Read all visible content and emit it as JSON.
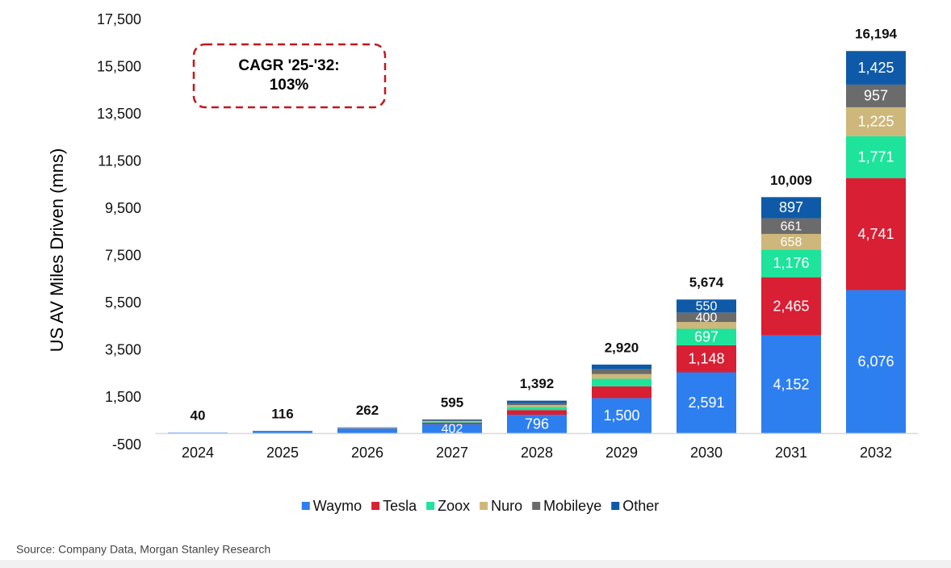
{
  "chart_data": {
    "type": "stacked_bar",
    "y_label": "US AV Miles Driven (mns)",
    "annotation": [
      "CAGR '25-'32:",
      "103%"
    ],
    "source": "Source: Company Data, Morgan Stanley Research",
    "categories": [
      "2024",
      "2025",
      "2026",
      "2027",
      "2028",
      "2029",
      "2030",
      "2031",
      "2032"
    ],
    "series": [
      {
        "name": "Waymo",
        "color": "#2d7ff0",
        "values": [
          40,
          112,
          215,
          402,
          796,
          1500,
          2591,
          4152,
          6076
        ],
        "value_labels": [
          null,
          null,
          null,
          "402",
          "796",
          "1,500",
          "2,591",
          "4,152",
          "6,076"
        ]
      },
      {
        "name": "Tesla",
        "color": "#d81f34",
        "values": [
          0,
          2,
          15,
          60,
          200,
          500,
          1148,
          2465,
          4741
        ],
        "value_labels": [
          null,
          null,
          null,
          null,
          null,
          null,
          "1,148",
          "2,465",
          "4,741"
        ]
      },
      {
        "name": "Zoox",
        "color": "#1ee39b",
        "values": [
          0,
          1,
          10,
          40,
          130,
          320,
          697,
          1176,
          1771
        ],
        "value_labels": [
          null,
          null,
          null,
          null,
          null,
          null,
          "697",
          "1,176",
          "1,771"
        ]
      },
      {
        "name": "Nuro",
        "color": "#cdb77a",
        "values": [
          0,
          0,
          5,
          25,
          80,
          200,
          288,
          658,
          1225
        ],
        "value_labels": [
          null,
          null,
          null,
          null,
          null,
          null,
          null,
          "658",
          "1,225"
        ]
      },
      {
        "name": "Mobileye",
        "color": "#6b6b6b",
        "values": [
          0,
          0,
          7,
          28,
          86,
          200,
          400,
          661,
          957
        ],
        "value_labels": [
          null,
          null,
          null,
          null,
          null,
          null,
          "400",
          "661",
          "957"
        ]
      },
      {
        "name": "Other",
        "color": "#0e5aa8",
        "values": [
          0,
          1,
          10,
          40,
          100,
          200,
          550,
          897,
          1425
        ],
        "value_labels": [
          null,
          null,
          null,
          null,
          null,
          null,
          "550",
          "897",
          "1,425"
        ]
      }
    ],
    "totals": [
      40,
      116,
      262,
      595,
      1392,
      2920,
      5674,
      10009,
      16194
    ],
    "total_labels": [
      "40",
      "116",
      "262",
      "595",
      "1,392",
      "2,920",
      "5,674",
      "10,009",
      "16,194"
    ],
    "ylim": [
      -500,
      17500
    ],
    "yticks": [
      -500,
      {
        "value": 1500,
        "label": "1,500"
      },
      {
        "value": 3500,
        "label": "3,500"
      },
      {
        "value": 5500,
        "label": "5,500"
      },
      {
        "value": 7500,
        "label": "7,500"
      },
      {
        "value": 9500,
        "label": "9,500"
      },
      {
        "value": 11500,
        "label": "11,500"
      },
      {
        "value": 13500,
        "label": "13,500"
      },
      {
        "value": 15500,
        "label": "15,500"
      },
      {
        "value": 17500,
        "label": "17,500"
      }
    ],
    "grid": false,
    "legend": "bottom"
  }
}
